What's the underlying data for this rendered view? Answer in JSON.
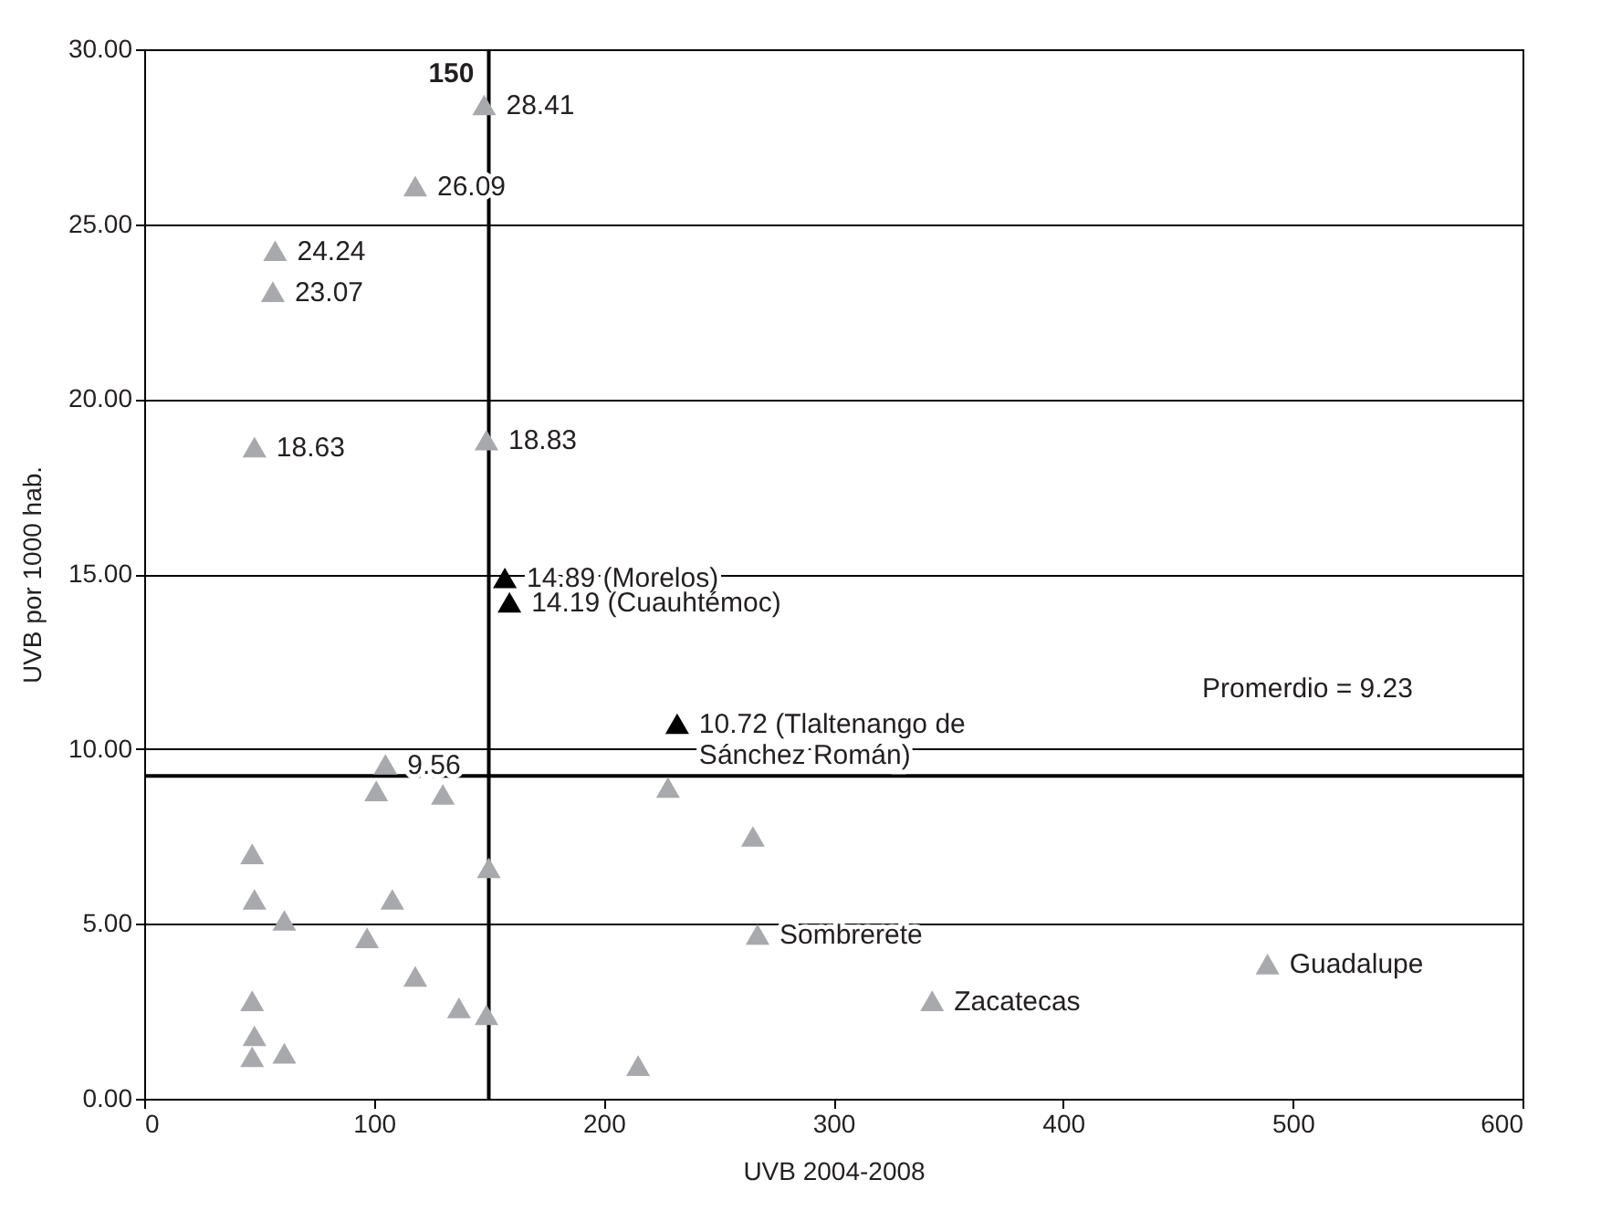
{
  "chart_data": {
    "type": "scatter",
    "xlabel": "UVB 2004-2008",
    "ylabel": "UVB por 1000 hab.",
    "xlim": [
      0,
      600
    ],
    "xticks": [
      0,
      100,
      200,
      300,
      400,
      500,
      600
    ],
    "ylim": [
      0,
      30
    ],
    "yticks": [
      {
        "value": 0,
        "label": "0.00"
      },
      {
        "value": 5,
        "label": "5.00"
      },
      {
        "value": 10,
        "label": "10.00"
      },
      {
        "value": 15,
        "label": "15.00"
      },
      {
        "value": 20,
        "label": "20.00"
      },
      {
        "value": 25,
        "label": "25.00"
      },
      {
        "value": 30,
        "label": "30.00"
      }
    ],
    "grid": "y",
    "marker": "triangle",
    "series": [
      {
        "color": "#a7a9ac",
        "x": [
          148,
          118,
          57,
          56,
          48,
          149,
          105,
          101,
          130,
          47,
          48,
          61,
          108,
          97,
          150,
          118,
          137,
          149,
          47,
          48,
          47,
          61,
          215,
          228,
          265,
          267,
          343,
          489
        ],
        "values": [
          28.41,
          26.09,
          24.24,
          23.07,
          18.63,
          18.83,
          9.56,
          8.8,
          8.7,
          7.0,
          5.7,
          5.1,
          5.7,
          4.6,
          6.6,
          3.5,
          2.6,
          2.4,
          2.8,
          1.8,
          1.2,
          1.3,
          0.95,
          8.9,
          7.5,
          4.7,
          2.8,
          3.85
        ],
        "value_labels": [
          "28.41",
          "26.09",
          "24.24",
          "23.07",
          "18.63",
          "18.83",
          "9.56",
          null,
          null,
          null,
          null,
          null,
          null,
          null,
          null,
          null,
          null,
          null,
          null,
          null,
          null,
          null,
          null,
          null,
          null,
          "Sombrerete",
          "Zacatecas",
          "Guadalupe"
        ]
      },
      {
        "color": "#000000",
        "x": [
          157,
          159,
          232
        ],
        "values": [
          14.89,
          14.19,
          10.72
        ],
        "value_labels": [
          "14.89 (Morelos)",
          "14.19 (Cuauhtémoc)",
          "10.72 (Tlaltenango de\nSánchez Román)"
        ]
      }
    ],
    "ref_lines": [
      {
        "axis": "x",
        "value": 150,
        "label": "150"
      },
      {
        "axis": "y",
        "value": 9.23,
        "label": "Promerdio = 9.23"
      }
    ]
  }
}
